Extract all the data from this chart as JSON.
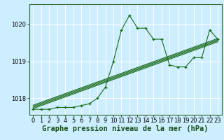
{
  "bg_color": "#cceeff",
  "grid_color": "#ffffff",
  "line_color": "#1a6b1a",
  "marker_color": "#1a6b1a",
  "xlabel": "Graphe pression niveau de la mer (hPa)",
  "xlabel_fontsize": 7.5,
  "tick_fontsize": 6,
  "yticks": [
    1018,
    1019,
    1020
  ],
  "ylim": [
    1017.55,
    1020.55
  ],
  "xlim": [
    -0.5,
    23.5
  ],
  "xticks": [
    0,
    1,
    2,
    3,
    4,
    5,
    6,
    7,
    8,
    9,
    10,
    11,
    12,
    13,
    14,
    15,
    16,
    17,
    18,
    19,
    20,
    21,
    22,
    23
  ],
  "main_line": [
    1017.7,
    1017.7,
    1017.7,
    1017.75,
    1017.75,
    1017.75,
    1017.8,
    1017.85,
    1018.0,
    1018.3,
    1019.0,
    1019.85,
    1020.25,
    1019.9,
    1019.9,
    1019.6,
    1019.6,
    1018.9,
    1018.85,
    1018.85,
    1019.1,
    1019.1,
    1019.85,
    1019.6
  ],
  "trend_lines": [
    [
      1017.72,
      1019.53
    ],
    [
      1017.75,
      1019.56
    ],
    [
      1017.78,
      1019.59
    ],
    [
      1017.81,
      1019.62
    ]
  ],
  "trend_x": [
    0,
    23
  ]
}
